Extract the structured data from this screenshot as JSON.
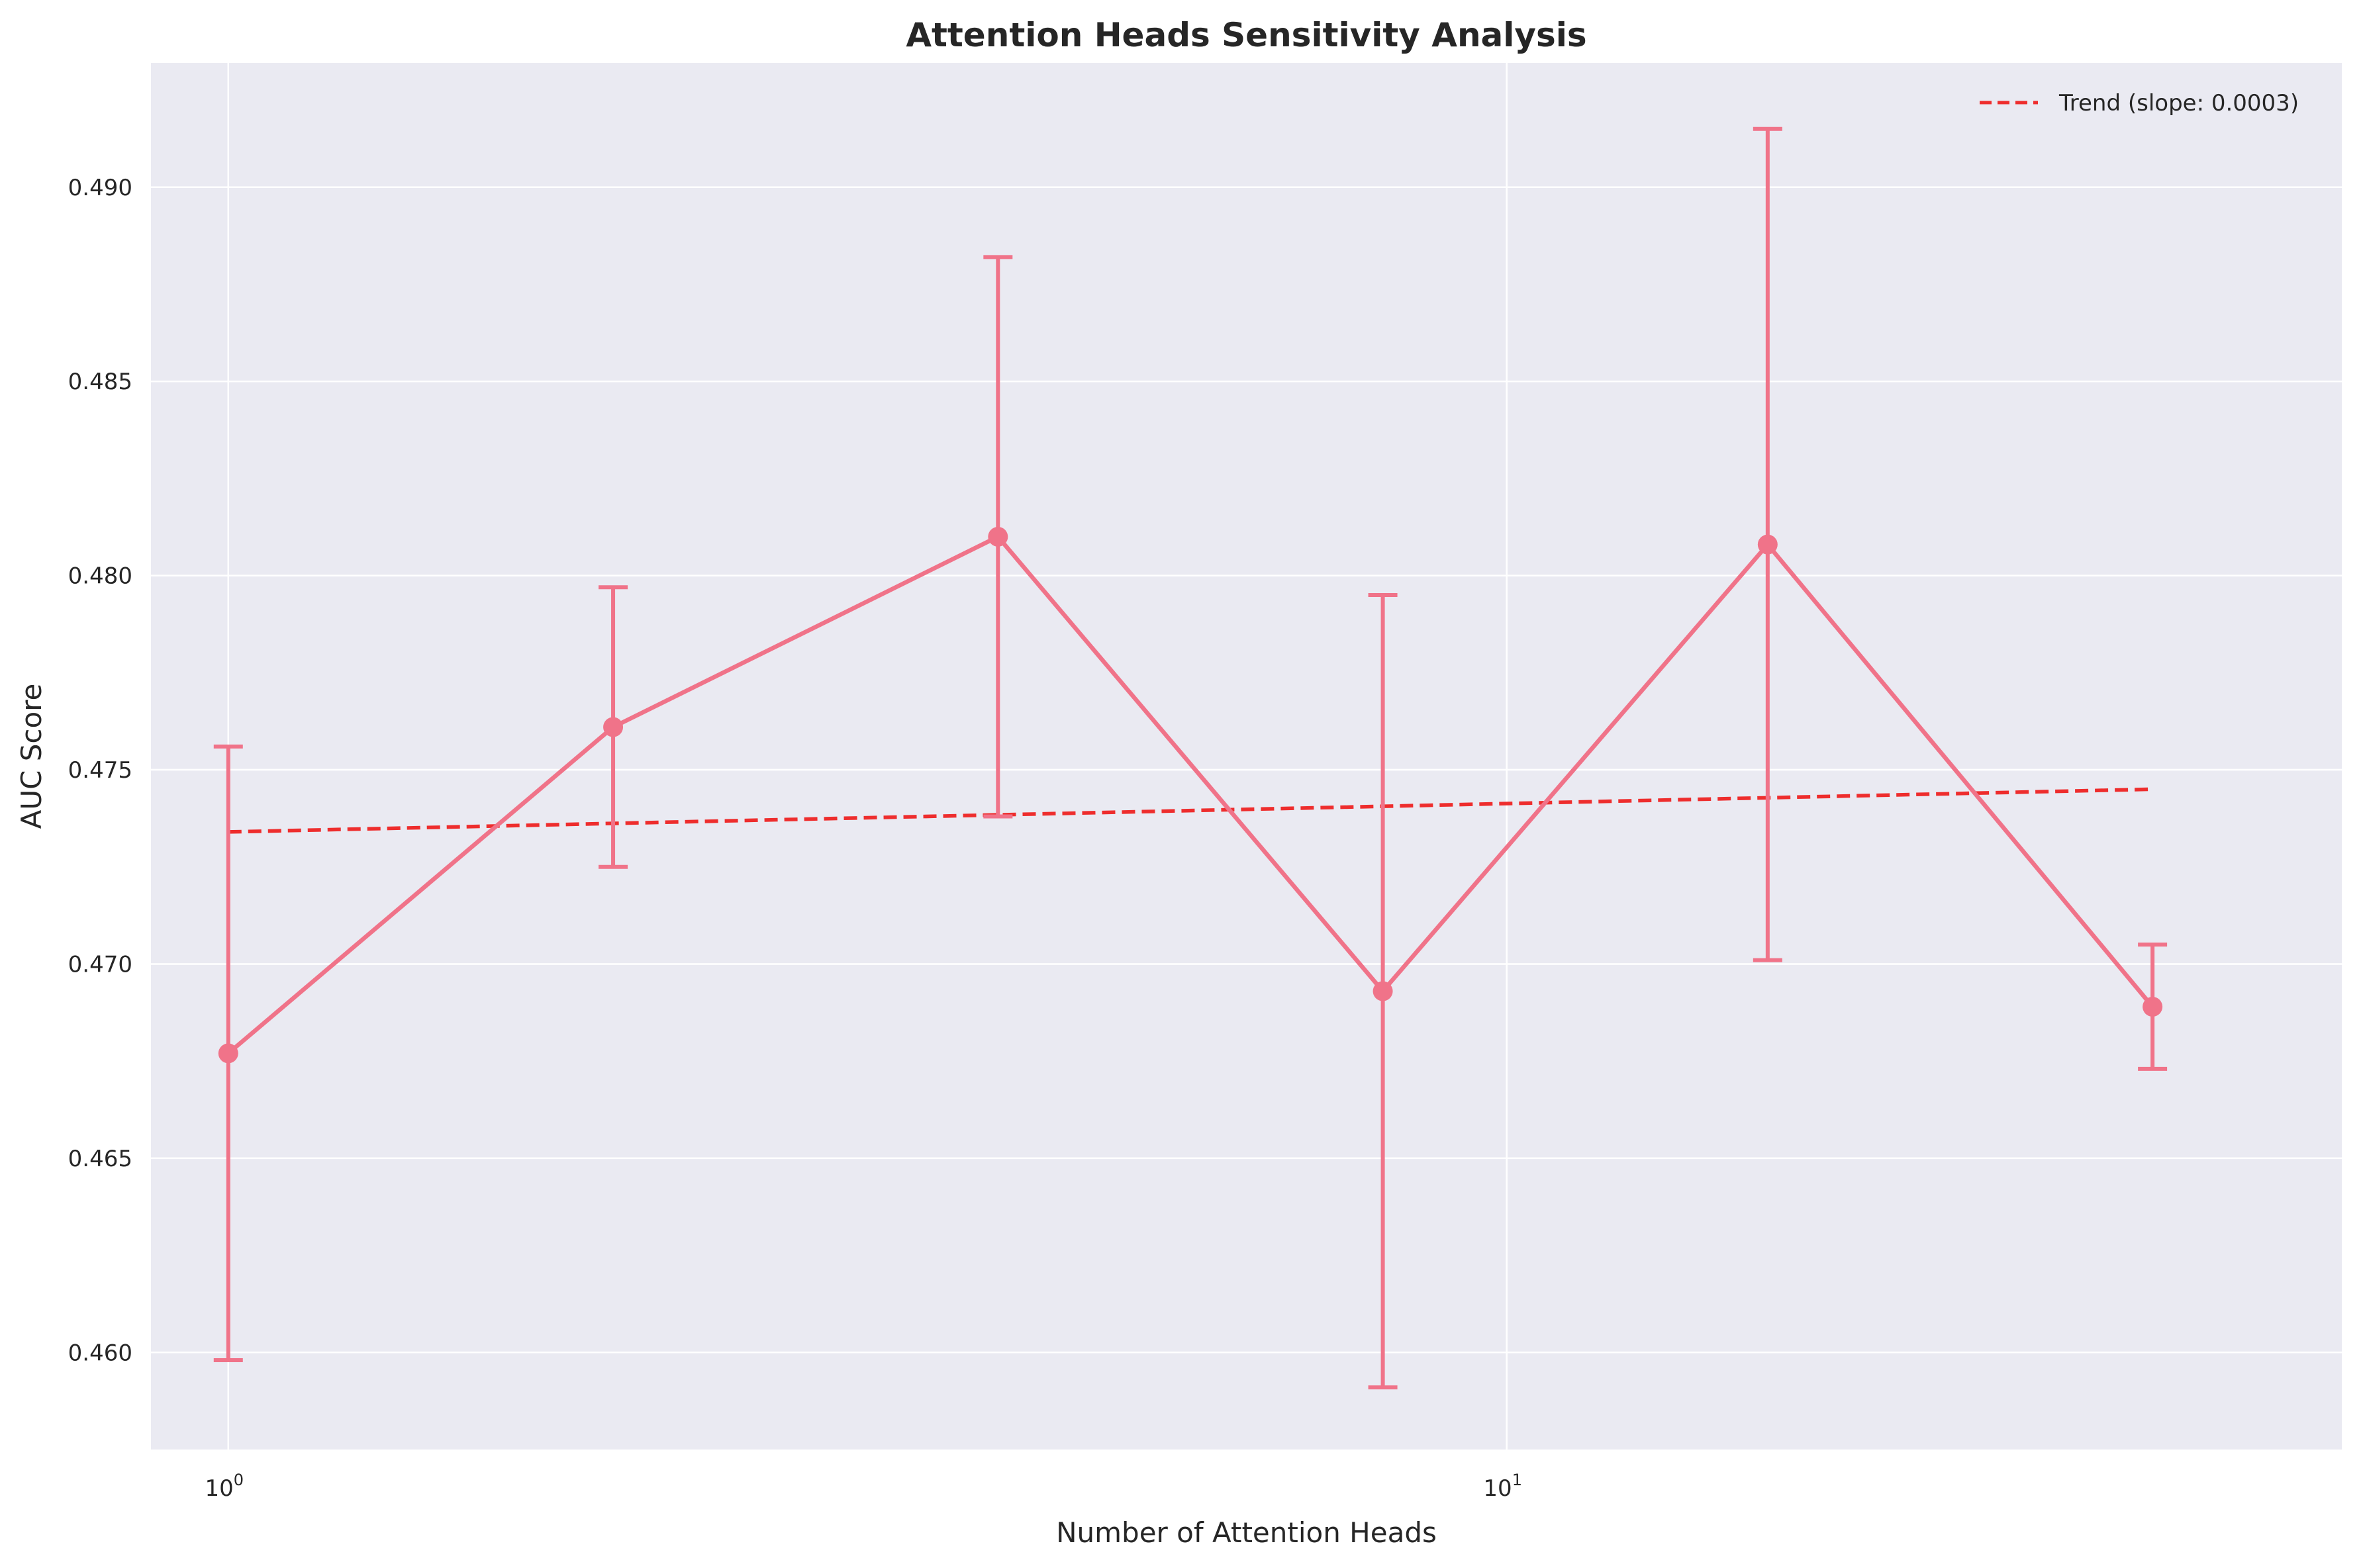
{
  "chart_data": {
    "type": "line",
    "title": "Attention Heads Sensitivity Analysis",
    "xlabel": "Number of Attention Heads",
    "ylabel": "AUC Score",
    "x_scale": "log",
    "xlim": [
      0.87,
      45
    ],
    "ylim": [
      0.4575,
      0.4932
    ],
    "x_ticks": [
      {
        "value": 1,
        "base": "10",
        "exp": "0"
      },
      {
        "value": 10,
        "base": "10",
        "exp": "1"
      }
    ],
    "y_ticks": [
      {
        "value": 0.46,
        "label": "0.460"
      },
      {
        "value": 0.465,
        "label": "0.465"
      },
      {
        "value": 0.47,
        "label": "0.470"
      },
      {
        "value": 0.475,
        "label": "0.475"
      },
      {
        "value": 0.48,
        "label": "0.480"
      },
      {
        "value": 0.485,
        "label": "0.485"
      },
      {
        "value": 0.49,
        "label": "0.490"
      }
    ],
    "grid": true,
    "legend_position": "top-right",
    "series": [
      {
        "type": "line-errorbar",
        "color": "#f07389",
        "x": [
          1,
          2,
          4,
          8,
          16,
          32
        ],
        "y": [
          0.4677,
          0.4761,
          0.481,
          0.4693,
          0.4808,
          0.4689
        ],
        "yerr": [
          0.0079,
          0.0036,
          0.0072,
          0.0102,
          0.0107,
          0.0016
        ]
      },
      {
        "name": "Trend (slope: 0.0003)",
        "type": "dashed-line",
        "color": "#ee2d2d",
        "x": [
          1,
          32
        ],
        "y": [
          0.4734,
          0.4745
        ]
      }
    ],
    "legend": [
      {
        "label": "Trend (slope: 0.0003)",
        "color": "#ee2d2d",
        "style": "dashed"
      }
    ]
  },
  "colors": {
    "plot_background": "#eaeaf2",
    "grid": "#ffffff",
    "text": "#262626"
  }
}
